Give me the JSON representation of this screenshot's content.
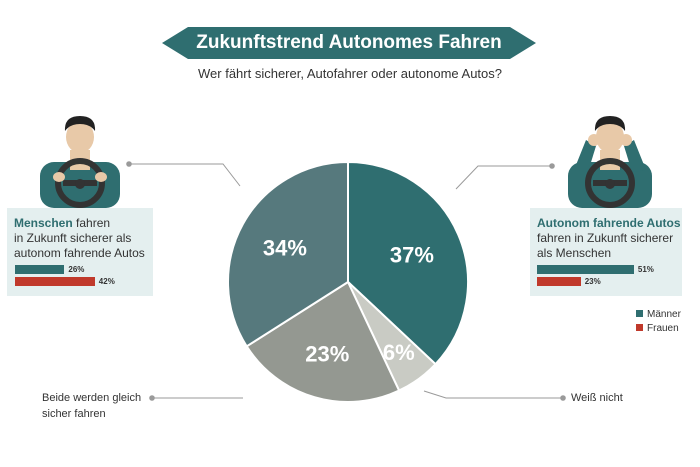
{
  "header": {
    "title": "Zukunftstrend Autonomes Fahren",
    "subtitle": "Wer fährt sicherer, Autofahrer oder autonome Autos?"
  },
  "left_box": {
    "highlight": "Menschen",
    "line1_rest": " fahren",
    "line2": "in Zukunft sicherer als",
    "line3": "autonom fahrende Autos",
    "men_label": "26%",
    "women_label": "42%"
  },
  "right_box": {
    "highlight": "Autonom fahrende Autos",
    "line2": "fahren in Zukunft sicherer",
    "line3": "als Menschen",
    "men_label": "51%",
    "women_label": "23%"
  },
  "legend": {
    "men": "Männer",
    "women": "Frauen"
  },
  "labels": {
    "both_line1": "Beide werden gleich",
    "both_line2": "sicher fahren",
    "dont_know": "Weiß nicht"
  },
  "colors": {
    "teal": "#2f6e70",
    "slate": "#56797d",
    "gray": "#949891",
    "light": "#c9cbc4",
    "red": "#c0392b",
    "box_bg": "#e4efef"
  },
  "chart_data": [
    {
      "type": "pie",
      "slices": [
        {
          "label": "Autonom fahrende Autos fahren in Zukunft sicherer als Menschen",
          "value": 37,
          "display": "37%",
          "color": "#2f6e70"
        },
        {
          "label": "Weiß nicht",
          "value": 6,
          "display": "6%",
          "color": "#c9cbc4"
        },
        {
          "label": "Beide werden gleich sicher fahren",
          "value": 23,
          "display": "23%",
          "color": "#949891"
        },
        {
          "label": "Menschen fahren in Zukunft sicherer als autonom fahrende Autos",
          "value": 34,
          "display": "34%",
          "color": "#56797d"
        }
      ]
    },
    {
      "type": "bar",
      "categories": [
        "Menschen fahren sicherer",
        "Autonom fahrende Autos fahren sicherer"
      ],
      "series": [
        {
          "name": "Männer",
          "values": [
            26,
            51
          ],
          "color": "#2f6e70"
        },
        {
          "name": "Frauen",
          "values": [
            42,
            23
          ],
          "color": "#c0392b"
        }
      ]
    }
  ]
}
